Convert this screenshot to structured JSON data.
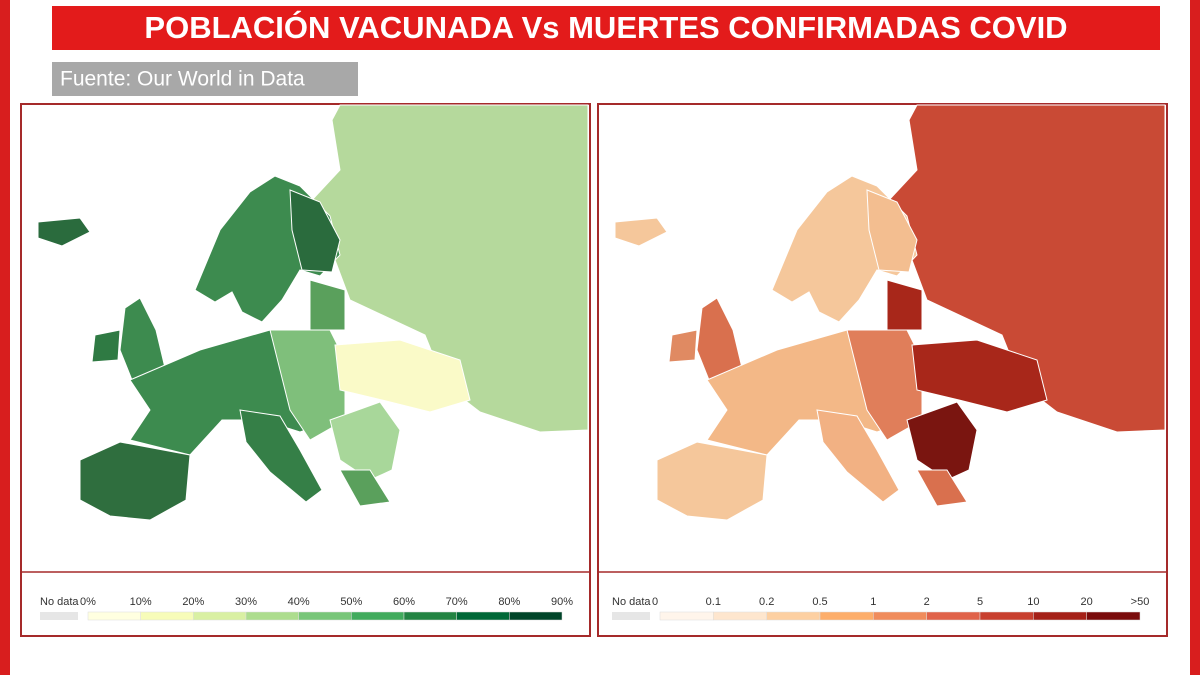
{
  "header": {
    "title": "POBLACIÓN VACUNADA Vs MUERTES CONFIRMADAS COVID",
    "source": "Fuente: Our World in Data"
  },
  "maps": [
    {
      "legend": {
        "no_data": "No data",
        "labels": [
          "0%",
          "10%",
          "20%",
          "30%",
          "40%",
          "50%",
          "60%",
          "70%",
          "80%",
          "90%"
        ]
      }
    },
    {
      "legend": {
        "no_data": "No data",
        "labels": [
          "0",
          "0.1",
          "0.2",
          "0.5",
          "1",
          "2",
          "5",
          "10",
          "20",
          ">50"
        ]
      }
    }
  ]
}
